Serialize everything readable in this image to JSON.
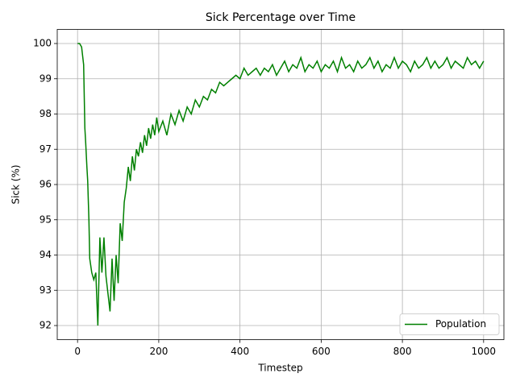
{
  "chart_data": {
    "type": "line",
    "title": "Sick Percentage over Time",
    "x_label": "Timestep",
    "y_label": "Sick (%)",
    "x": [
      0,
      5,
      10,
      15,
      18,
      20,
      23,
      25,
      28,
      30,
      35,
      40,
      45,
      50,
      55,
      60,
      65,
      70,
      75,
      80,
      85,
      90,
      95,
      100,
      105,
      110,
      115,
      120,
      125,
      130,
      135,
      140,
      145,
      150,
      155,
      160,
      165,
      170,
      175,
      180,
      185,
      190,
      195,
      200,
      210,
      220,
      230,
      240,
      250,
      260,
      270,
      280,
      290,
      300,
      310,
      320,
      330,
      340,
      350,
      360,
      370,
      380,
      390,
      400,
      410,
      420,
      430,
      440,
      450,
      460,
      470,
      480,
      490,
      500,
      510,
      520,
      530,
      540,
      550,
      560,
      570,
      580,
      590,
      600,
      610,
      620,
      630,
      640,
      650,
      660,
      670,
      680,
      690,
      700,
      710,
      720,
      730,
      740,
      750,
      760,
      770,
      780,
      790,
      800,
      810,
      820,
      830,
      840,
      850,
      860,
      870,
      880,
      890,
      900,
      910,
      920,
      930,
      940,
      950,
      960,
      970,
      980,
      990,
      1000
    ],
    "series": [
      {
        "name": "Population",
        "color": "#008000",
        "values": [
          100,
          100,
          99.9,
          99.4,
          97.6,
          97.2,
          96.5,
          96.1,
          95.0,
          93.9,
          93.5,
          93.3,
          93.5,
          92.0,
          94.5,
          93.5,
          94.5,
          93.4,
          92.9,
          92.4,
          93.9,
          92.7,
          94.0,
          93.2,
          94.9,
          94.4,
          95.5,
          95.9,
          96.5,
          96.1,
          96.8,
          96.4,
          97.0,
          96.8,
          97.2,
          96.9,
          97.4,
          97.1,
          97.6,
          97.3,
          97.7,
          97.4,
          97.9,
          97.5,
          97.8,
          97.4,
          98.0,
          97.7,
          98.1,
          97.8,
          98.2,
          98.0,
          98.4,
          98.2,
          98.5,
          98.4,
          98.7,
          98.6,
          98.9,
          98.8,
          98.9,
          99.0,
          99.1,
          99.0,
          99.3,
          99.1,
          99.2,
          99.3,
          99.1,
          99.3,
          99.2,
          99.4,
          99.1,
          99.3,
          99.5,
          99.2,
          99.4,
          99.3,
          99.6,
          99.2,
          99.4,
          99.3,
          99.5,
          99.2,
          99.4,
          99.3,
          99.5,
          99.2,
          99.6,
          99.3,
          99.4,
          99.2,
          99.5,
          99.3,
          99.4,
          99.6,
          99.3,
          99.5,
          99.2,
          99.4,
          99.3,
          99.6,
          99.3,
          99.5,
          99.4,
          99.2,
          99.5,
          99.3,
          99.4,
          99.6,
          99.3,
          99.5,
          99.3,
          99.4,
          99.6,
          99.3,
          99.5,
          99.4,
          99.3,
          99.6,
          99.4,
          99.5,
          99.3,
          99.5
        ]
      }
    ],
    "xlim": [
      -50,
      1050
    ],
    "ylim": [
      91.6,
      100.4
    ],
    "xticks": [
      0,
      200,
      400,
      600,
      800,
      1000
    ],
    "yticks": [
      92,
      93,
      94,
      95,
      96,
      97,
      98,
      99,
      100
    ],
    "grid": true,
    "legend_position": "lower right"
  }
}
